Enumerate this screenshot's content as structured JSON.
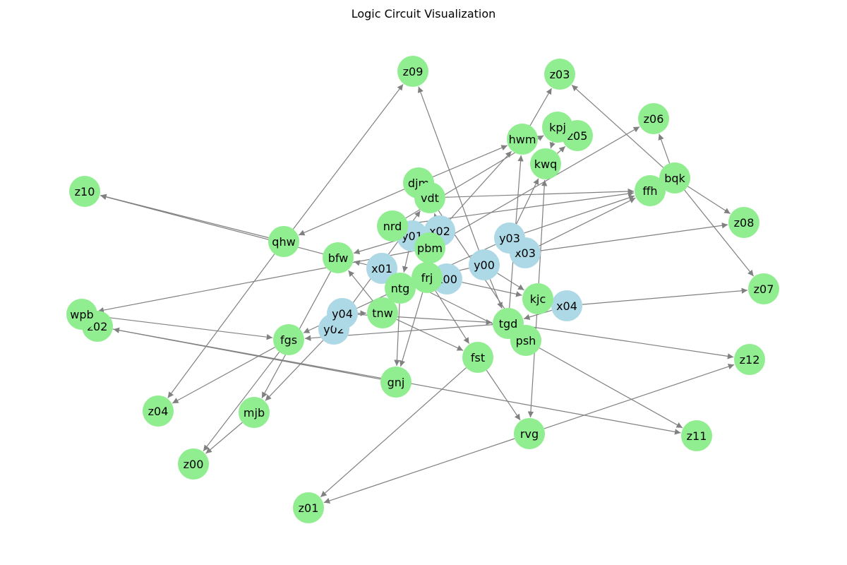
{
  "title": "Logic Circuit Visualization",
  "colors": {
    "input_node": "#add8e6",
    "gate_node": "#90ee90",
    "edge": "#808080"
  },
  "nodes": [
    {
      "id": "x00",
      "kind": "input"
    },
    {
      "id": "x01",
      "kind": "input"
    },
    {
      "id": "x02",
      "kind": "input"
    },
    {
      "id": "x03",
      "kind": "input"
    },
    {
      "id": "x04",
      "kind": "input"
    },
    {
      "id": "y00",
      "kind": "input"
    },
    {
      "id": "y01",
      "kind": "input"
    },
    {
      "id": "y02",
      "kind": "input"
    },
    {
      "id": "y03",
      "kind": "input"
    },
    {
      "id": "y04",
      "kind": "input"
    },
    {
      "id": "z00",
      "kind": "gate"
    },
    {
      "id": "z01",
      "kind": "gate"
    },
    {
      "id": "z02",
      "kind": "gate"
    },
    {
      "id": "z03",
      "kind": "gate"
    },
    {
      "id": "z04",
      "kind": "gate"
    },
    {
      "id": "z05",
      "kind": "gate"
    },
    {
      "id": "z06",
      "kind": "gate"
    },
    {
      "id": "z07",
      "kind": "gate"
    },
    {
      "id": "z08",
      "kind": "gate"
    },
    {
      "id": "z09",
      "kind": "gate"
    },
    {
      "id": "z10",
      "kind": "gate"
    },
    {
      "id": "z11",
      "kind": "gate"
    },
    {
      "id": "z12",
      "kind": "gate"
    },
    {
      "id": "hwm",
      "kind": "gate"
    },
    {
      "id": "kpj",
      "kind": "gate"
    },
    {
      "id": "kwq",
      "kind": "gate"
    },
    {
      "id": "djm",
      "kind": "gate"
    },
    {
      "id": "vdt",
      "kind": "gate"
    },
    {
      "id": "nrd",
      "kind": "gate"
    },
    {
      "id": "pbm",
      "kind": "gate"
    },
    {
      "id": "ffh",
      "kind": "gate"
    },
    {
      "id": "bqk",
      "kind": "gate"
    },
    {
      "id": "qhw",
      "kind": "gate"
    },
    {
      "id": "bfw",
      "kind": "gate"
    },
    {
      "id": "frj",
      "kind": "gate"
    },
    {
      "id": "ntg",
      "kind": "gate"
    },
    {
      "id": "kjc",
      "kind": "gate"
    },
    {
      "id": "tnw",
      "kind": "gate"
    },
    {
      "id": "tgd",
      "kind": "gate"
    },
    {
      "id": "psh",
      "kind": "gate"
    },
    {
      "id": "fgs",
      "kind": "gate"
    },
    {
      "id": "fst",
      "kind": "gate"
    },
    {
      "id": "gnj",
      "kind": "gate"
    },
    {
      "id": "wpb",
      "kind": "gate"
    },
    {
      "id": "mjb",
      "kind": "gate"
    },
    {
      "id": "rvg",
      "kind": "gate"
    }
  ],
  "edges": [
    [
      "x00",
      "frj"
    ],
    [
      "y00",
      "frj"
    ],
    [
      "x00",
      "kjc"
    ],
    [
      "y00",
      "kjc"
    ],
    [
      "x01",
      "bfw"
    ],
    [
      "y01",
      "bfw"
    ],
    [
      "x01",
      "ntg"
    ],
    [
      "y01",
      "ntg"
    ],
    [
      "x02",
      "vdt"
    ],
    [
      "y02",
      "vdt"
    ],
    [
      "x02",
      "hwm"
    ],
    [
      "y02",
      "mjb"
    ],
    [
      "x03",
      "ffh"
    ],
    [
      "y03",
      "ffh"
    ],
    [
      "x03",
      "z08"
    ],
    [
      "y03",
      "kwq"
    ],
    [
      "x04",
      "tgd"
    ],
    [
      "y04",
      "tgd"
    ],
    [
      "x04",
      "z07"
    ],
    [
      "y04",
      "tnw"
    ],
    [
      "frj",
      "gnj"
    ],
    [
      "frj",
      "fst"
    ],
    [
      "ntg",
      "gnj"
    ],
    [
      "ntg",
      "tnw"
    ],
    [
      "bfw",
      "z10"
    ],
    [
      "qhw",
      "z10"
    ],
    [
      "qhw",
      "z09"
    ],
    [
      "y00",
      "z09"
    ],
    [
      "djm",
      "qhw"
    ],
    [
      "djm",
      "hwm"
    ],
    [
      "hwm",
      "z03"
    ],
    [
      "bqk",
      "z03"
    ],
    [
      "kpj",
      "kwq"
    ],
    [
      "kwq",
      "z05"
    ],
    [
      "bqk",
      "z06"
    ],
    [
      "bqk",
      "z08"
    ],
    [
      "bqk",
      "z07"
    ],
    [
      "nrd",
      "kpj"
    ],
    [
      "nrd",
      "ffh"
    ],
    [
      "vdt",
      "ffh"
    ],
    [
      "vdt",
      "psh"
    ],
    [
      "pbm",
      "z06"
    ],
    [
      "pbm",
      "wpb"
    ],
    [
      "fgs",
      "z04"
    ],
    [
      "qhw",
      "z04"
    ],
    [
      "fgs",
      "z00"
    ],
    [
      "mjb",
      "z00"
    ],
    [
      "fst",
      "z01"
    ],
    [
      "rvg",
      "z01"
    ],
    [
      "fst",
      "rvg"
    ],
    [
      "kjc",
      "rvg"
    ],
    [
      "kjc",
      "kwq"
    ],
    [
      "wpb",
      "fgs"
    ],
    [
      "tgd",
      "fgs"
    ],
    [
      "tgd",
      "z12"
    ],
    [
      "rvg",
      "z12"
    ],
    [
      "psh",
      "z11"
    ],
    [
      "gnj",
      "z02"
    ],
    [
      "z02",
      "z11"
    ],
    [
      "bfw",
      "mjb"
    ],
    [
      "tnw",
      "bfw"
    ],
    [
      "tnw",
      "fst"
    ],
    [
      "y03",
      "fgs"
    ],
    [
      "x01",
      "psh"
    ],
    [
      "tgd",
      "hwm"
    ],
    [
      "y00",
      "tgd"
    ]
  ]
}
